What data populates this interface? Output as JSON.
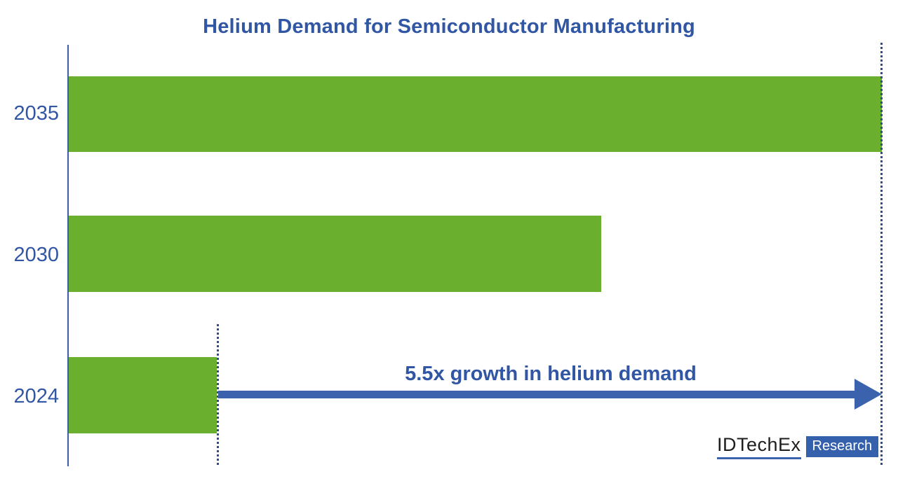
{
  "chart_data": {
    "type": "bar",
    "orientation": "horizontal",
    "title": "Helium Demand for Semiconductor Manufacturing",
    "categories": [
      "2035",
      "2030",
      "2024"
    ],
    "values": [
      5.5,
      3.6,
      1.0
    ],
    "value_scale": "relative helium demand (2024 = 1)",
    "xlim": [
      0,
      5.5
    ],
    "grid": false,
    "legend": false,
    "annotation": "5.5x growth in helium demand",
    "bar_color": "#6AB02E",
    "text_color": "#3156A4",
    "arrow_color": "#3A62AD",
    "dotted_line_color": "#2E4D8E"
  },
  "branding": {
    "logo_text": "IDTechEx",
    "logo_badge": "Research",
    "badge_color": "#3560AC"
  }
}
